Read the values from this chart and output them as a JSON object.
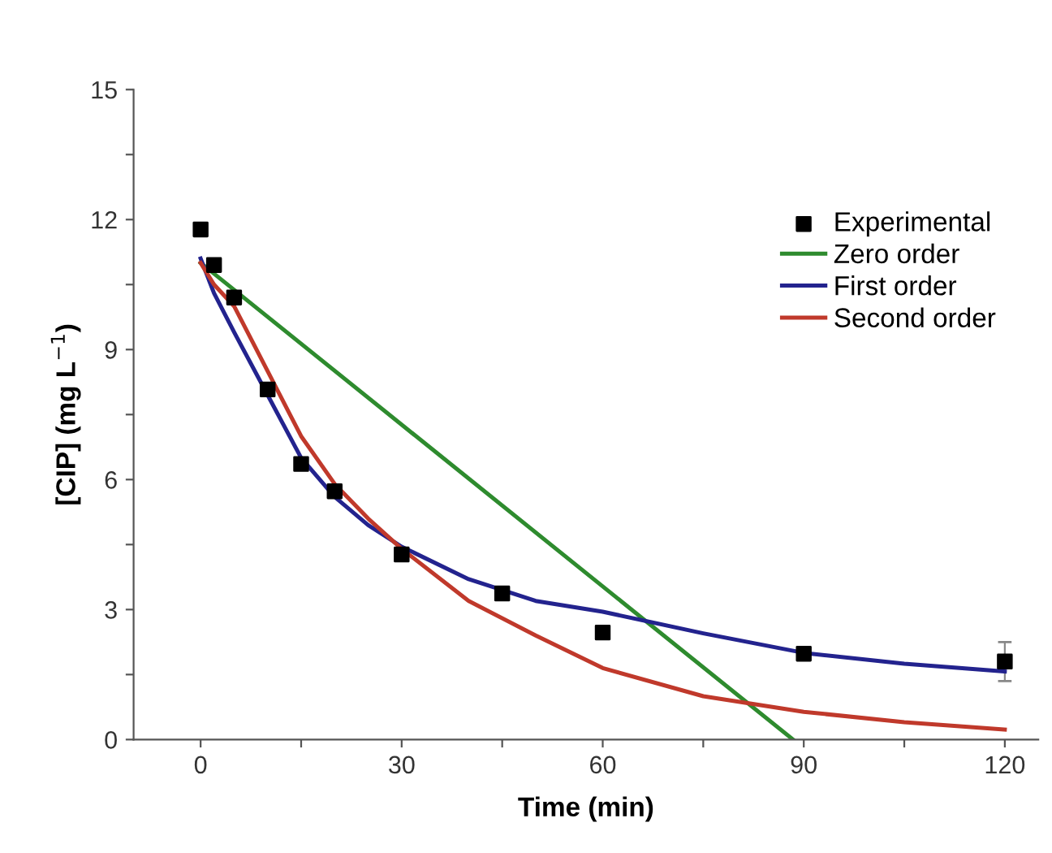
{
  "chart_data": {
    "type": "line",
    "xlabel": "Time (min)",
    "ylabel": "[CIP] (mg L$^{−1}$)",
    "xlim": [
      -10,
      125
    ],
    "ylim": [
      0,
      15
    ],
    "xticks": [
      0,
      {
        "value": 15,
        "label": null
      },
      30,
      {
        "value": 45,
        "label": null
      },
      60,
      {
        "value": 75,
        "label": null
      },
      90,
      {
        "value": 105,
        "label": null
      },
      120
    ],
    "yticks": [
      0,
      {
        "value": 1.5,
        "label": null
      },
      3,
      {
        "value": 4.5,
        "label": null
      },
      6,
      {
        "value": 7.5,
        "label": null
      },
      9,
      {
        "value": 10.5,
        "label": null
      },
      12,
      {
        "value": 13.5,
        "label": null
      },
      15
    ],
    "grid": false,
    "legend": "top right",
    "series": [
      {
        "name": "Experimental",
        "type": "scatter",
        "marker": "square",
        "color": "#000000",
        "x": [
          0,
          2,
          5,
          10,
          15,
          20,
          30,
          45,
          60,
          90,
          120
        ],
        "values": [
          11.77,
          10.95,
          10.2,
          8.08,
          6.36,
          5.73,
          4.27,
          3.37,
          2.47,
          1.98,
          1.8
        ],
        "errors": [
          null,
          null,
          null,
          null,
          null,
          null,
          null,
          null,
          null,
          null,
          0.45
        ]
      },
      {
        "name": "Zero order",
        "color": "#2e8b2e",
        "x": [
          0,
          88.4
        ],
        "values": [
          11.0,
          0
        ]
      },
      {
        "name": "First order",
        "color": "#23238e",
        "x": [
          0,
          2,
          5,
          10,
          15,
          20,
          25,
          30,
          40,
          50,
          60,
          75,
          90,
          105,
          120
        ],
        "values": [
          11.1,
          10.3,
          9.4,
          7.95,
          6.5,
          5.6,
          4.95,
          4.45,
          3.7,
          3.2,
          2.95,
          2.45,
          2.0,
          1.75,
          1.57
        ]
      },
      {
        "name": "Second order",
        "color": "#c0392b",
        "x": [
          0,
          2,
          5,
          10,
          15,
          20,
          25,
          30,
          40,
          50,
          60,
          75,
          90,
          105,
          120
        ],
        "values": [
          11.0,
          10.5,
          10.0,
          8.5,
          7.0,
          5.9,
          5.1,
          4.4,
          3.2,
          2.4,
          1.65,
          1.0,
          0.64,
          0.4,
          0.23
        ]
      }
    ]
  }
}
